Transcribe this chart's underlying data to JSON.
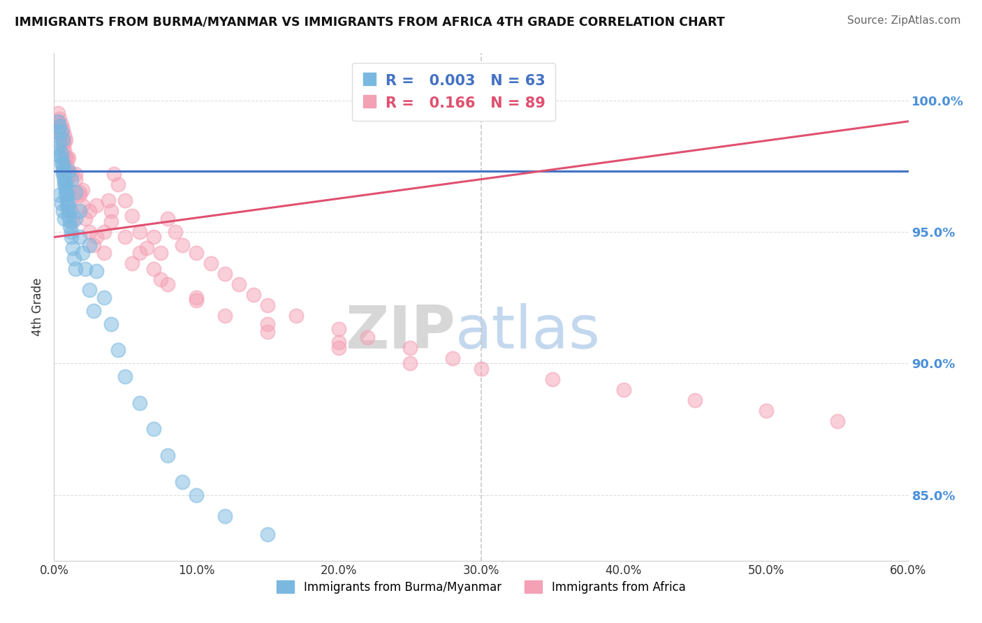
{
  "title": "IMMIGRANTS FROM BURMA/MYANMAR VS IMMIGRANTS FROM AFRICA 4TH GRADE CORRELATION CHART",
  "source": "Source: ZipAtlas.com",
  "xlabel_blue": "Immigrants from Burma/Myanmar",
  "xlabel_pink": "Immigrants from Africa",
  "ylabel": "4th Grade",
  "xlim": [
    0.0,
    60.0
  ],
  "ylim": [
    82.5,
    101.8
  ],
  "ytick_vals": [
    85.0,
    90.0,
    95.0,
    100.0
  ],
  "xtick_vals": [
    0.0,
    10.0,
    20.0,
    30.0,
    40.0,
    50.0,
    60.0
  ],
  "legend_blue_R": "0.003",
  "legend_blue_N": "63",
  "legend_pink_R": "0.166",
  "legend_pink_N": "89",
  "blue_dot_color": "#7ab8e0",
  "pink_dot_color": "#f4a0b5",
  "blue_line_color": "#4472c4",
  "pink_line_color": "#e05070",
  "dashed_color": "#c8c8c8",
  "accent_color": "#4a90d9",
  "watermark_zip": "ZIP",
  "watermark_atlas": "atlas",
  "blue_scatter_x": [
    0.3,
    0.4,
    0.5,
    0.6,
    0.3,
    0.4,
    0.5,
    0.6,
    0.7,
    0.8,
    0.4,
    0.5,
    0.6,
    0.7,
    0.3,
    0.4,
    0.5,
    0.6,
    0.7,
    0.8,
    0.9,
    1.0,
    0.5,
    0.6,
    0.7,
    0.8,
    0.9,
    1.0,
    1.1,
    1.2,
    0.6,
    0.7,
    0.8,
    0.9,
    1.0,
    1.1,
    1.2,
    1.3,
    1.4,
    1.5,
    1.5,
    1.8,
    2.0,
    2.2,
    2.5,
    2.8,
    1.0,
    1.2,
    1.5,
    1.8,
    2.5,
    3.0,
    3.5,
    4.0,
    4.5,
    5.0,
    6.0,
    7.0,
    8.0,
    9.0,
    10.0,
    12.0,
    15.0
  ],
  "blue_scatter_y": [
    99.2,
    99.0,
    98.8,
    98.5,
    98.2,
    97.9,
    97.6,
    97.3,
    97.0,
    96.7,
    96.4,
    96.1,
    95.8,
    95.5,
    98.8,
    98.4,
    98.0,
    97.6,
    97.2,
    96.8,
    96.4,
    96.0,
    97.8,
    97.4,
    97.0,
    96.6,
    96.2,
    95.8,
    95.4,
    95.0,
    97.2,
    96.8,
    96.4,
    96.0,
    95.6,
    95.2,
    94.8,
    94.4,
    94.0,
    93.6,
    95.5,
    94.8,
    94.2,
    93.6,
    92.8,
    92.0,
    97.3,
    97.0,
    96.5,
    95.8,
    94.5,
    93.5,
    92.5,
    91.5,
    90.5,
    89.5,
    88.5,
    87.5,
    86.5,
    85.5,
    85.0,
    84.2,
    83.5
  ],
  "pink_scatter_x": [
    0.3,
    0.4,
    0.5,
    0.6,
    0.7,
    0.8,
    0.4,
    0.5,
    0.6,
    0.7,
    0.8,
    0.9,
    1.0,
    0.5,
    0.6,
    0.7,
    0.8,
    0.9,
    1.0,
    1.1,
    1.2,
    1.3,
    1.5,
    1.8,
    2.0,
    2.2,
    2.5,
    2.8,
    3.0,
    3.5,
    3.8,
    4.0,
    4.2,
    4.5,
    5.0,
    5.5,
    6.0,
    6.5,
    7.0,
    7.5,
    8.0,
    8.5,
    9.0,
    10.0,
    11.0,
    12.0,
    13.0,
    14.0,
    15.0,
    17.0,
    20.0,
    22.0,
    25.0,
    28.0,
    30.0,
    35.0,
    40.0,
    45.0,
    50.0,
    55.0,
    0.3,
    0.5,
    0.7,
    1.0,
    1.5,
    2.0,
    3.0,
    4.0,
    5.0,
    6.0,
    7.0,
    8.0,
    10.0,
    12.0,
    15.0,
    20.0,
    25.0,
    0.4,
    0.6,
    0.9,
    1.2,
    1.8,
    2.5,
    3.5,
    5.5,
    7.5,
    10.0,
    15.0,
    20.0
  ],
  "pink_scatter_y": [
    99.5,
    99.3,
    99.1,
    98.9,
    98.7,
    98.5,
    99.0,
    98.7,
    98.4,
    98.1,
    97.8,
    97.5,
    97.2,
    98.6,
    98.2,
    97.8,
    97.4,
    97.0,
    96.6,
    96.2,
    95.8,
    95.4,
    97.0,
    96.5,
    96.0,
    95.5,
    95.0,
    94.5,
    94.8,
    94.2,
    96.2,
    95.8,
    97.2,
    96.8,
    96.2,
    95.6,
    95.0,
    94.4,
    94.8,
    94.2,
    95.5,
    95.0,
    94.5,
    94.2,
    93.8,
    93.4,
    93.0,
    92.6,
    92.2,
    91.8,
    91.3,
    91.0,
    90.6,
    90.2,
    89.8,
    89.4,
    89.0,
    88.6,
    88.2,
    87.8,
    99.2,
    98.8,
    98.4,
    97.8,
    97.2,
    96.6,
    96.0,
    95.4,
    94.8,
    94.2,
    93.6,
    93.0,
    92.4,
    91.8,
    91.2,
    90.6,
    90.0,
    99.0,
    98.5,
    97.8,
    97.2,
    96.4,
    95.8,
    95.0,
    93.8,
    93.2,
    92.5,
    91.5,
    90.8
  ],
  "dashed_hline_y": 97.3,
  "dashed_vline_x": 30.0,
  "blue_trendline_x": [
    0.0,
    60.0
  ],
  "blue_trendline_y": [
    97.3,
    97.3
  ],
  "pink_trendline_x": [
    0.0,
    60.0
  ],
  "pink_trendline_y": [
    94.8,
    99.2
  ]
}
